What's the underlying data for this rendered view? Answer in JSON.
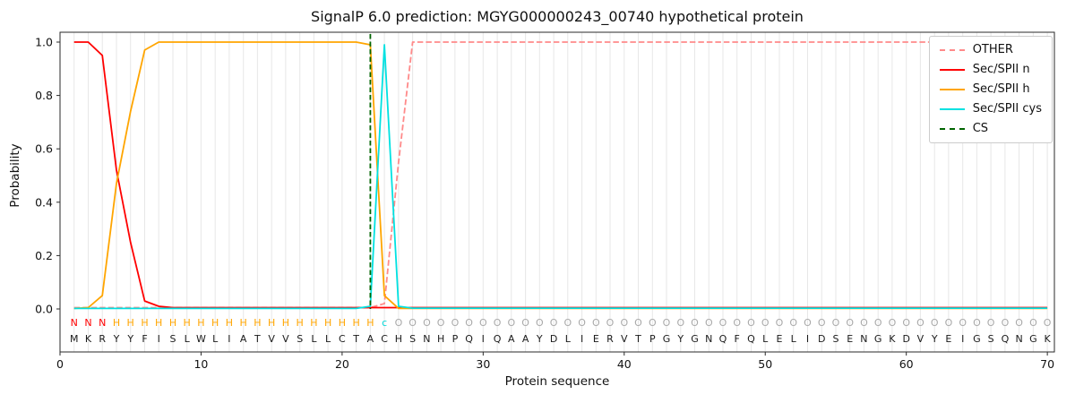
{
  "chart_data": {
    "type": "line",
    "title": "SignalP 6.0 prediction: MGYG000000243_00740 hypothetical protein",
    "xlabel": "Protein sequence",
    "ylabel": "Probability",
    "xlim": [
      0,
      70.5
    ],
    "ylim": [
      0,
      1
    ],
    "xticks": [
      0,
      10,
      20,
      30,
      40,
      50,
      60,
      70
    ],
    "yticks": [
      0.0,
      0.2,
      0.4,
      0.6,
      0.8,
      1.0
    ],
    "grid": "vertical-per-residue",
    "legend_position": "upper-right",
    "sequence": "MKRYYFISLWLIATVVSLLCTACHSNHPQIQAAYDLIERVTPGYGNQFQLELIDSENGKDVYEIGSQNGK",
    "region_labels": "NNNHHHHHHHHHHHHHHHHHHHcOOOOOOOOOOOOOOOOOOOOOOOOOOOOOOOOOOOOOOOOOOOOOOO",
    "region_colors": {
      "N": "#ff0000",
      "H": "#ffa500",
      "c": "#00d8d8",
      "O": "#a9a9a9"
    },
    "series": [
      {
        "name": "OTHER",
        "slug": "other",
        "color": "#ff8a8a",
        "dash": true,
        "values": [
          0.005,
          0.005,
          0.005,
          0.005,
          0.005,
          0.005,
          0.005,
          0.005,
          0.005,
          0.005,
          0.005,
          0.005,
          0.005,
          0.005,
          0.005,
          0.005,
          0.005,
          0.005,
          0.005,
          0.005,
          0.005,
          0.005,
          0.02,
          0.55,
          1.0,
          1.0,
          1.0,
          1.0,
          1.0,
          1.0,
          1.0,
          1.0,
          1.0,
          1.0,
          1.0,
          1.0,
          1.0,
          1.0,
          1.0,
          1.0,
          1.0,
          1.0,
          1.0,
          1.0,
          1.0,
          1.0,
          1.0,
          1.0,
          1.0,
          1.0,
          1.0,
          1.0,
          1.0,
          1.0,
          1.0,
          1.0,
          1.0,
          1.0,
          1.0,
          1.0,
          1.0,
          1.0,
          1.0,
          1.0,
          1.0,
          1.0,
          1.0,
          1.0,
          1.0,
          1.0
        ]
      },
      {
        "name": "Sec/SPII n",
        "slug": "sec-spii-n",
        "color": "#ff0000",
        "dash": false,
        "values": [
          1.0,
          1.0,
          0.95,
          0.52,
          0.25,
          0.03,
          0.01,
          0.005,
          0.005,
          0.005,
          0.005,
          0.005,
          0.005,
          0.005,
          0.005,
          0.005,
          0.005,
          0.005,
          0.005,
          0.005,
          0.005,
          0.005,
          0.005,
          0.005,
          0.005,
          0.005,
          0.005,
          0.005,
          0.005,
          0.005,
          0.005,
          0.005,
          0.005,
          0.005,
          0.005,
          0.005,
          0.005,
          0.005,
          0.005,
          0.005,
          0.005,
          0.005,
          0.005,
          0.005,
          0.005,
          0.005,
          0.005,
          0.005,
          0.005,
          0.005,
          0.005,
          0.005,
          0.005,
          0.005,
          0.005,
          0.005,
          0.005,
          0.005,
          0.005,
          0.005,
          0.005,
          0.005,
          0.005,
          0.005,
          0.005,
          0.005,
          0.005,
          0.005,
          0.005,
          0.005
        ]
      },
      {
        "name": "Sec/SPII h",
        "slug": "sec-spii-h",
        "color": "#ffa500",
        "dash": false,
        "values": [
          0.002,
          0.005,
          0.05,
          0.47,
          0.74,
          0.97,
          1.0,
          1.0,
          1.0,
          1.0,
          1.0,
          1.0,
          1.0,
          1.0,
          1.0,
          1.0,
          1.0,
          1.0,
          1.0,
          1.0,
          1.0,
          0.99,
          0.05,
          0.002,
          0.002,
          0.002,
          0.002,
          0.002,
          0.002,
          0.002,
          0.002,
          0.002,
          0.002,
          0.002,
          0.002,
          0.002,
          0.002,
          0.002,
          0.002,
          0.002,
          0.002,
          0.002,
          0.002,
          0.002,
          0.002,
          0.002,
          0.002,
          0.002,
          0.002,
          0.002,
          0.002,
          0.002,
          0.002,
          0.002,
          0.002,
          0.002,
          0.002,
          0.002,
          0.002,
          0.002,
          0.002,
          0.002,
          0.002,
          0.002,
          0.002,
          0.002,
          0.002,
          0.002,
          0.002,
          0.002
        ]
      },
      {
        "name": "Sec/SPII cys",
        "slug": "sec-spii-cys",
        "color": "#00e1e1",
        "dash": false,
        "values": [
          0.002,
          0.002,
          0.002,
          0.002,
          0.002,
          0.002,
          0.002,
          0.002,
          0.002,
          0.002,
          0.002,
          0.002,
          0.002,
          0.002,
          0.002,
          0.002,
          0.002,
          0.002,
          0.002,
          0.002,
          0.002,
          0.01,
          0.99,
          0.01,
          0.003,
          0.003,
          0.003,
          0.003,
          0.003,
          0.003,
          0.003,
          0.003,
          0.003,
          0.003,
          0.003,
          0.003,
          0.003,
          0.003,
          0.003,
          0.003,
          0.003,
          0.003,
          0.003,
          0.003,
          0.003,
          0.003,
          0.003,
          0.003,
          0.003,
          0.003,
          0.003,
          0.003,
          0.003,
          0.003,
          0.003,
          0.003,
          0.003,
          0.003,
          0.003,
          0.003,
          0.003,
          0.003,
          0.003,
          0.003,
          0.003,
          0.003,
          0.003,
          0.003,
          0.003,
          0.003
        ]
      }
    ],
    "cs": {
      "name": "CS",
      "color": "#006400",
      "dash": true,
      "position": 22
    }
  }
}
